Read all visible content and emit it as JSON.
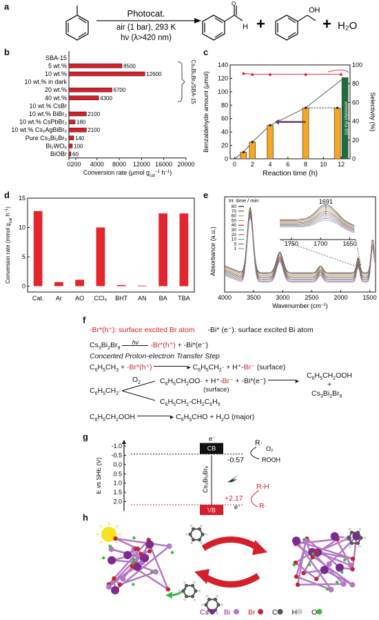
{
  "panel_labels": {
    "a": "a",
    "b": "b",
    "c": "c",
    "d": "d",
    "e": "e",
    "f": "f",
    "g": "g",
    "h": "h"
  },
  "reaction": {
    "catalyst": "Photocat.",
    "cond1": "air (1 bar), 293 K",
    "cond2": "hν (λ>420 nm)",
    "plus": "+",
    "water": "H₂O",
    "aldehyde_h": "H",
    "oh": "OH",
    "o": "O"
  },
  "chart_b": {
    "type": "bar",
    "orientation": "horizontal",
    "categories": [
      "SBA-15",
      "5 wt.%",
      "10 wt.%",
      "10 wt.% in dark",
      "20 wt.%",
      "40 wt.%",
      "10 wt.% CsBr",
      "10 wt.% BiBr₃",
      "10 wt.% CsPbBr₃",
      "10 wt.% Cs₂AgBiBr₆",
      "Pure Cs₃Bi₂Br₉",
      "Bi₂WO₆",
      "BiOBr"
    ],
    "values": [
      0,
      8500,
      12600,
      0,
      6700,
      4300,
      0,
      2100,
      180,
      2100,
      140,
      100,
      60
    ],
    "data_labels": [
      "",
      "8500",
      "12600",
      "",
      "6700",
      "4300",
      "",
      "2100",
      "180",
      "2100",
      "140",
      "100",
      "60"
    ],
    "xticks": [
      "0",
      "200",
      "4000",
      "8000",
      "12000",
      "16000",
      "20000"
    ],
    "xtick_values": [
      0,
      200,
      4000,
      8000,
      12000,
      16000,
      20000
    ],
    "xlabel": "Conversion rate (μmol g",
    "xlabel_sub": "cat",
    "xlabel_sup": "−1",
    "xlabel_tail": " h",
    "xlabel_sup2": "−1",
    "xlabel_end": ")",
    "bracket_label": "Cs₃Bi₂Br₉/SBA-15",
    "bar_color": "#d4202a"
  },
  "chart_c": {
    "type": "bar+line",
    "x": [
      1,
      2,
      4,
      8,
      12
    ],
    "amount": [
      10,
      25,
      50,
      76,
      76
    ],
    "selectivity": [
      91,
      90,
      90,
      90,
      90
    ],
    "extra_bar": {
      "x": 12,
      "value": 121,
      "label": "aniosolys Na SO",
      "color": "#1e6e3c"
    },
    "xticks": [
      "0",
      "2",
      "4",
      "6",
      "8",
      "10",
      "12"
    ],
    "xtick_values": [
      0,
      2,
      4,
      6,
      8,
      10,
      12
    ],
    "yticks": [
      "0",
      "20",
      "40",
      "60",
      "80",
      "100",
      "120",
      "140"
    ],
    "ytick_values": [
      0,
      20,
      40,
      60,
      80,
      100,
      120,
      140
    ],
    "y2ticks": [
      "0",
      "20",
      "40",
      "60",
      "80",
      "100"
    ],
    "y2tick_values": [
      0,
      20,
      40,
      60,
      80,
      100
    ],
    "xlabel": "Reaction time (h)",
    "ylabel": "Benzaldehyde amount (μmol)",
    "y2label": "Selectivity (%)",
    "xlim": [
      -0.5,
      13
    ],
    "ylim": [
      0,
      140
    ],
    "y2lim": [
      0,
      100
    ],
    "bar_color": "#f5a623"
  },
  "chart_d": {
    "type": "bar",
    "categories": [
      "Cat.",
      "Ar",
      "AO",
      "CCl₄",
      "BHT",
      "AN",
      "BA",
      "TBA"
    ],
    "values": [
      12.8,
      0.7,
      1.1,
      10,
      0.2,
      0.1,
      12.4,
      12.4
    ],
    "yticks": [
      "0",
      "5",
      "10",
      "15"
    ],
    "ytick_values": [
      0,
      5,
      10,
      15
    ],
    "ylim": [
      -1,
      15
    ],
    "ylabel": "Conversion rate (mmol g",
    "ylabel_sub": "cat",
    "ylabel_tail": " h",
    "ylabel_sup": "−1",
    "ylabel_end": ")",
    "bar_color": "#e3262d"
  },
  "chart_e": {
    "type": "line",
    "xticks": [
      "4000",
      "3500",
      "3000",
      "2500",
      "2000",
      "1500"
    ],
    "xtick_values": [
      4000,
      3500,
      3000,
      2500,
      2000,
      1500
    ],
    "xlim": [
      4000,
      1400
    ],
    "xlabel": "Wavenumber (cm",
    "xlabel_sup": "−1",
    "xlabel_end": ")",
    "ylabel": "Absorbance (a.u.)",
    "legend_title": "Irr. time / min",
    "legend": [
      "80",
      "70",
      "60",
      "50",
      "40",
      "30",
      "20",
      "10",
      "5",
      "1"
    ],
    "inset_peak": "1691",
    "inset_xticks": [
      "1750",
      "1700",
      "1650"
    ],
    "inset_xtick_values": [
      1750,
      1700,
      1650
    ]
  },
  "mechanism": {
    "defs_br": "-Br*(h⁺): surface excited Br atom",
    "defs_bi": "-Bi* (e⁻): surface excited Bi atom",
    "step_title": "Concerted Proton-electron Transfer Step"
  },
  "band_g": {
    "yticks": [
      "-1.0",
      "-0.5",
      "0.0",
      "0.5",
      "1.0",
      "1.5",
      "2.0"
    ],
    "ytick_values": [
      -1.0,
      -0.5,
      0.0,
      0.5,
      1.0,
      1.5,
      2.0
    ],
    "ylim": [
      -1.3,
      2.5
    ],
    "cb": -0.57,
    "vb": 2.17,
    "cb_text": "-0.57",
    "vb_text": "+2.17",
    "cb_label": "CB",
    "vb_label": "VB",
    "ylabel": "E vs SHE (V)",
    "material": "Cs₃Bi₂Br₉",
    "electron": "e⁻",
    "hole": "h⁺",
    "r_dot": "R·",
    "o2": "O₂",
    "rooh": "ROOH",
    "rh": "R-H",
    "r_dot2": "R·",
    "e2": "e⁻"
  },
  "legend_h": {
    "items": [
      {
        "name": "Cs",
        "color": "#7b2a90"
      },
      {
        "name": "Bi",
        "color": "#b478c8"
      },
      {
        "name": "Br",
        "color": "#c0282d"
      },
      {
        "name": "C",
        "color": "#555555"
      },
      {
        "name": "H",
        "color": "#d0d0d0"
      },
      {
        "name": "O",
        "color": "#2fbf3a"
      }
    ]
  }
}
